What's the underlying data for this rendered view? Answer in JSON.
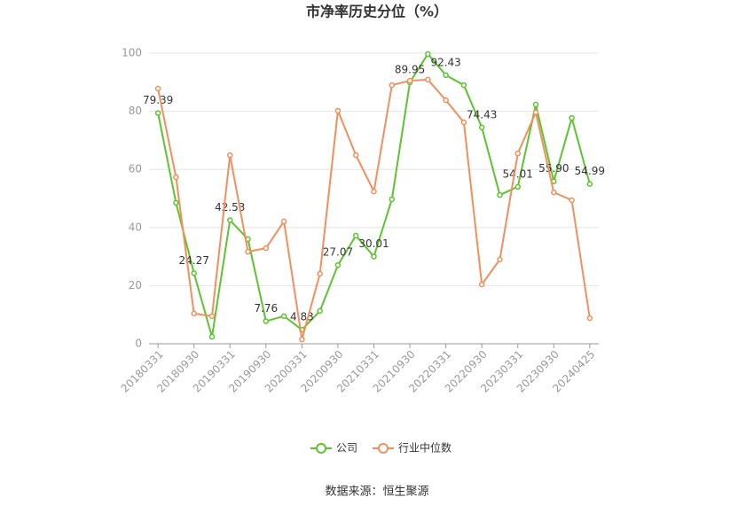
{
  "chart_data": {
    "type": "line",
    "title": "市净率历史分位（%）",
    "source": "数据来源：恒生聚源",
    "categories": [
      "20180331",
      null,
      "20180930",
      null,
      "20190331",
      null,
      "20190930",
      null,
      "20200331",
      null,
      "20200930",
      null,
      "20210331",
      null,
      "20210930",
      null,
      "20220331",
      null,
      "20220930",
      null,
      "20230331",
      null,
      "20230930",
      null,
      "20240425"
    ],
    "series": [
      {
        "name": "公司",
        "color": "#5cc42e",
        "values": [
          79.39,
          48.5,
          24.27,
          2.4,
          42.53,
          36,
          7.76,
          9.5,
          4.83,
          11.3,
          27.07,
          37.2,
          30.01,
          49.7,
          89.95,
          99.7,
          92.43,
          89,
          74.43,
          51.2,
          54.01,
          82.3,
          55.9,
          77.7,
          54.99
        ],
        "value_labels": [
          "79.39",
          null,
          "24.27",
          null,
          "42.53",
          null,
          "7.76",
          null,
          "4.83",
          null,
          "27.07",
          null,
          "30.01",
          null,
          "89.95",
          null,
          "92.43",
          null,
          "74.43",
          null,
          "54.01",
          null,
          "55.90",
          null,
          "54.99"
        ]
      },
      {
        "name": "行业中位数",
        "color": "#f28f5c",
        "values": [
          87.8,
          57.3,
          10.4,
          9.5,
          64.9,
          31.7,
          32.9,
          42.1,
          1.5,
          24.1,
          80.2,
          64.9,
          52.4,
          89,
          90.5,
          90.9,
          83.8,
          76.2,
          20.4,
          29,
          65.5,
          79.6,
          52.1,
          49.4,
          8.8
        ]
      }
    ],
    "ylim": [
      0,
      100
    ],
    "yticks": [
      0,
      20,
      40,
      60,
      80,
      100
    ],
    "grid": true
  }
}
